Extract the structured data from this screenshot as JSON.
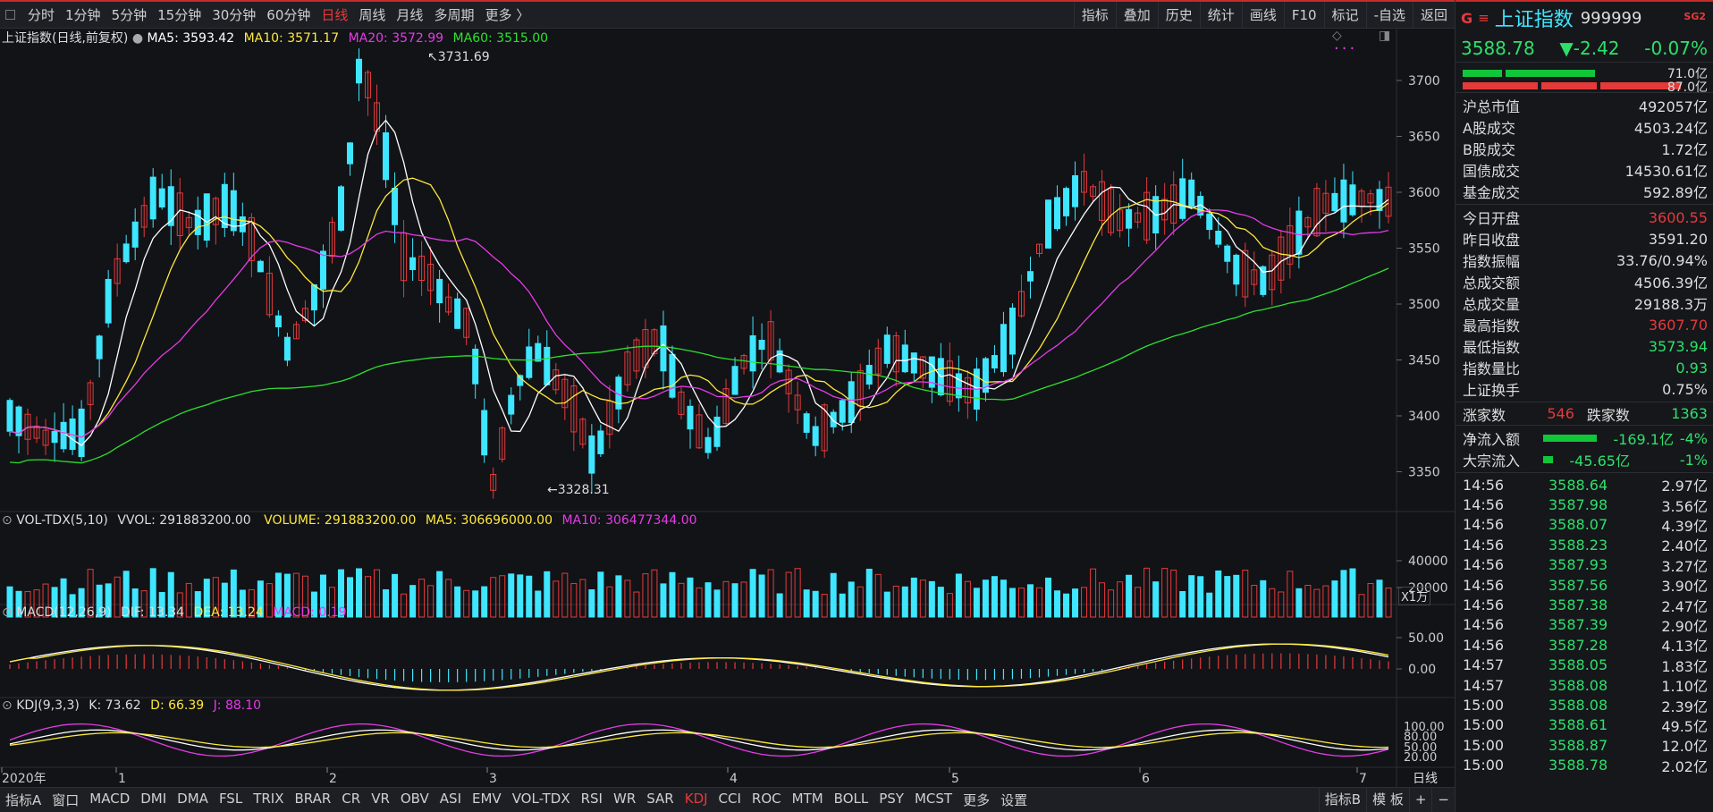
{
  "toolbar": {
    "periods": [
      "分时",
      "1分钟",
      "5分钟",
      "15分钟",
      "30分钟",
      "60分钟",
      "日线",
      "周线",
      "月线",
      "多周期",
      "更多 〉"
    ],
    "active_period": "日线",
    "right_tools": [
      "指标",
      "叠加",
      "历史",
      "统计",
      "画线",
      "F10",
      "标记",
      "-自选",
      "返回"
    ]
  },
  "main_header": {
    "title": "上证指数(日线,前复权)",
    "ma5": "MA5: 3593.42",
    "ma10": "MA10: 3571.17",
    "ma20": "MA20: 3572.99",
    "ma60": "MA60: 3515.00",
    "high_label": "3731.69",
    "low_label": "3328.31"
  },
  "price_axis": [
    "3700",
    "3650",
    "3600",
    "3550",
    "3500",
    "3450",
    "3400",
    "3350"
  ],
  "vol_header": {
    "name": "VOL-TDX(5,10)",
    "vvol": "VVOL: 291883200.00",
    "volume": "VOLUME: 291883200.00",
    "ma5": "MA5: 306696000.00",
    "ma10": "MA10: 306477344.00"
  },
  "vol_axis": [
    "40000",
    "20000"
  ],
  "vol_unit": "X1万",
  "macd_header": {
    "name": "MACD(12,26,9)",
    "dif": "DIF: 13.34",
    "dea": "DEA: 13.24",
    "macd": "MACD: 0.19"
  },
  "macd_axis": [
    "50.00",
    "0.00"
  ],
  "kdj_header": {
    "name": "KDJ(9,3,3)",
    "k": "K: 73.62",
    "d": "D: 66.39",
    "j": "J: 88.10"
  },
  "kdj_axis": [
    "100.00",
    "80.00",
    "50.00",
    "20.00"
  ],
  "time_axis": [
    "2020年",
    "1",
    "2",
    "3",
    "4",
    "5",
    "6",
    "7"
  ],
  "time_period_label": "日线",
  "bottom_tabs": [
    "指标A",
    "窗口",
    "MACD",
    "DMI",
    "DMA",
    "FSL",
    "TRIX",
    "BRAR",
    "CR",
    "VR",
    "OBV",
    "ASI",
    "EMV",
    "VOL-TDX",
    "RSI",
    "WR",
    "SAR",
    "KDJ",
    "CCI",
    "ROC",
    "MTM",
    "BOLL",
    "PSY",
    "MCST",
    "更多",
    "设置"
  ],
  "active_bottom_tab": "KDJ",
  "bottom_right": [
    "指标B",
    "模 板",
    "+",
    "−"
  ],
  "sidebar": {
    "g": "G",
    "menu": "≡",
    "name": "上证指数",
    "code": "999999",
    "tag": "SG2",
    "price": "3588.78",
    "change": "▼-2.42",
    "pct": "-0.07%",
    "bar1_val": "71.0亿",
    "bar2_val": "87.0亿",
    "rows1": [
      {
        "label": "沪总市值",
        "value": "492057亿",
        "color": ""
      },
      {
        "label": "A股成交",
        "value": "4503.24亿",
        "color": ""
      },
      {
        "label": "B股成交",
        "value": "1.72亿",
        "color": ""
      },
      {
        "label": "国债成交",
        "value": "14530.61亿",
        "color": ""
      },
      {
        "label": "基金成交",
        "value": "592.89亿",
        "color": ""
      }
    ],
    "rows2": [
      {
        "label": "今日开盘",
        "value": "3600.55",
        "color": "red"
      },
      {
        "label": "昨日收盘",
        "value": "3591.20",
        "color": ""
      },
      {
        "label": "指数振幅",
        "value": "33.76/0.94%",
        "color": ""
      },
      {
        "label": "总成交额",
        "value": "4506.39亿",
        "color": ""
      },
      {
        "label": "总成交量",
        "value": "29188.3万",
        "color": ""
      },
      {
        "label": "最高指数",
        "value": "3607.70",
        "color": "red"
      },
      {
        "label": "最低指数",
        "value": "3573.94",
        "color": "green"
      },
      {
        "label": "指数量比",
        "value": "0.93",
        "color": "green"
      },
      {
        "label": "上证换手",
        "value": "0.75%",
        "color": ""
      }
    ],
    "advance": {
      "up_label": "涨家数",
      "up": "546",
      "down_label": "跌家数",
      "down": "1363"
    },
    "flows": [
      {
        "label": "净流入额",
        "value": "-169.1亿",
        "pct": "-4%",
        "bar": 0.85
      },
      {
        "label": "大宗流入",
        "value": "-45.65亿",
        "pct": "-1%",
        "bar": 0.15
      }
    ],
    "ticks": [
      {
        "time": "14:56",
        "price": "3588.64",
        "amount": "2.97亿"
      },
      {
        "time": "14:56",
        "price": "3587.98",
        "amount": "3.56亿"
      },
      {
        "time": "14:56",
        "price": "3588.07",
        "amount": "4.39亿"
      },
      {
        "time": "14:56",
        "price": "3588.23",
        "amount": "2.40亿"
      },
      {
        "time": "14:56",
        "price": "3587.93",
        "amount": "3.27亿"
      },
      {
        "time": "14:56",
        "price": "3587.56",
        "amount": "3.90亿"
      },
      {
        "time": "14:56",
        "price": "3587.38",
        "amount": "2.47亿"
      },
      {
        "time": "14:56",
        "price": "3587.39",
        "amount": "2.90亿"
      },
      {
        "time": "14:56",
        "price": "3587.28",
        "amount": "4.13亿"
      },
      {
        "time": "14:57",
        "price": "3588.05",
        "amount": "1.83亿"
      },
      {
        "time": "14:57",
        "price": "3588.08",
        "amount": "1.10亿"
      },
      {
        "time": "15:00",
        "price": "3588.08",
        "amount": "2.39亿"
      },
      {
        "time": "15:00",
        "price": "3588.61",
        "amount": "49.5亿"
      },
      {
        "time": "15:00",
        "price": "3588.87",
        "amount": "12.0亿"
      },
      {
        "time": "15:00",
        "price": "3588.78",
        "amount": "2.02亿"
      }
    ]
  },
  "colors": {
    "up": "#e53a3a",
    "down": "#3ee6ff",
    "ma5": "#ffffff",
    "ma10": "#ffe83a",
    "ma20": "#e63ae6",
    "ma60": "#2ee02e"
  },
  "chart_data": {
    "type": "candlestick",
    "series_price_range": [
      3320,
      3740
    ],
    "high": 3731.69,
    "low": 3328.31
  }
}
